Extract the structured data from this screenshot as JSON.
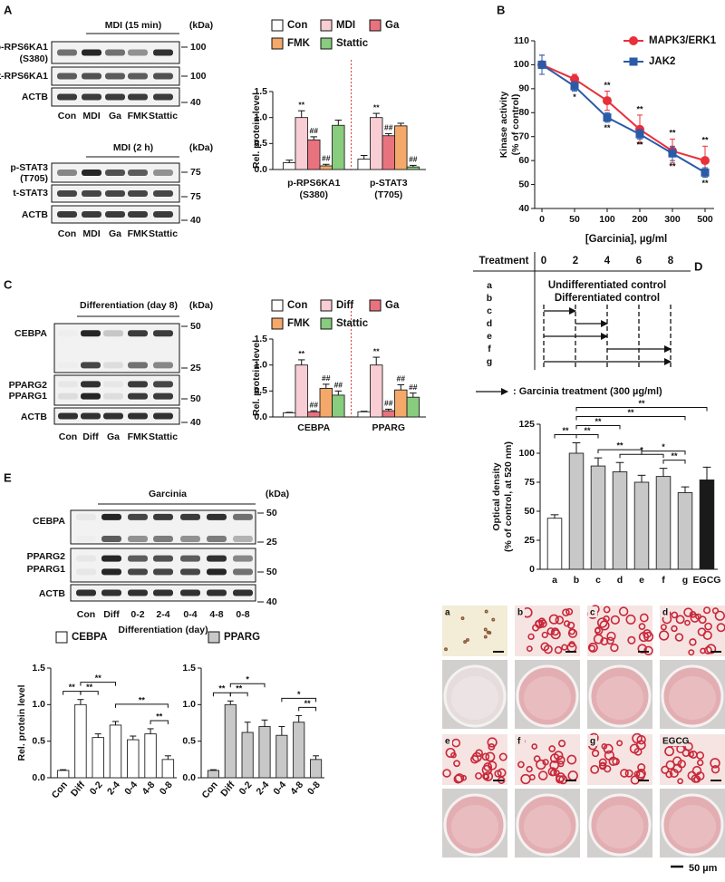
{
  "panels": [
    "A",
    "B",
    "C",
    "D",
    "E"
  ],
  "blots": [
    {
      "title": "MDI (15 min)",
      "kda": "(kDa)",
      "lanes": [
        "Con",
        "MDI",
        "Ga",
        "FMK",
        "Stattic"
      ],
      "rows": [
        {
          "labels": [
            "p-RPS6KA1",
            "(S380)"
          ],
          "markers": [
            100
          ]
        },
        {
          "labels": [
            "t-RPS6KA1"
          ],
          "markers": [
            100
          ]
        },
        {
          "labels": [
            "ACTB"
          ],
          "markers": [
            40
          ]
        }
      ]
    },
    {
      "title": "MDI (2 h)",
      "kda": "(kDa)",
      "lanes": [
        "Con",
        "MDI",
        "Ga",
        "FMK",
        "Stattic"
      ],
      "rows": [
        {
          "labels": [
            "p-STAT3",
            "(T705)"
          ],
          "markers": [
            75
          ]
        },
        {
          "labels": [
            "t-STAT3"
          ],
          "markers": [
            75
          ]
        },
        {
          "labels": [
            "ACTB"
          ],
          "markers": [
            40
          ]
        }
      ]
    },
    {
      "title": "Differentiation (day 8)",
      "kda": "(kDa)",
      "lanes": [
        "Con",
        "Diff",
        "Ga",
        "FMK",
        "Stattic"
      ],
      "rows": [
        {
          "labels": [
            "CEBPA"
          ],
          "markers": [
            50,
            25
          ]
        },
        {
          "labels": [
            "PPARG2",
            "PPARG1"
          ],
          "markers": [
            50
          ]
        },
        {
          "labels": [
            "ACTB"
          ],
          "markers": [
            40
          ]
        }
      ]
    },
    {
      "title": "Garcinia",
      "kda": "(kDa)",
      "lanes": [
        "Con",
        "Diff",
        "0-2",
        "2-4",
        "0-4",
        "4-8",
        "0-8"
      ],
      "xlabel": "Differentiation (day)",
      "rows": [
        {
          "labels": [
            "CEBPA"
          ],
          "markers": [
            50,
            25
          ]
        },
        {
          "labels": [
            "PPARG2",
            "PPARG1"
          ],
          "markers": [
            50
          ]
        },
        {
          "labels": [
            "ACTB"
          ],
          "markers": [
            40
          ]
        }
      ]
    }
  ],
  "chart_data": [
    {
      "type": "bar",
      "ylabel": [
        "Rel. protein level"
      ],
      "categories": [
        [
          "p-RPS6KA1",
          "(S380)"
        ],
        [
          "p-STAT3",
          "(T705)"
        ]
      ],
      "divider": true,
      "series": [
        {
          "name": "Con",
          "color": "#ffffff",
          "values": [
            0.13,
            0.2
          ],
          "errors": [
            0.05,
            0.07
          ],
          "marks": [
            null,
            null
          ]
        },
        {
          "name": "MDI",
          "color": "#f8cdd3",
          "values": [
            1.0,
            1.0
          ],
          "errors": [
            0.13,
            0.08
          ],
          "marks": [
            "**",
            "**"
          ]
        },
        {
          "name": "Ga",
          "color": "#e8737e",
          "values": [
            0.57,
            0.65
          ],
          "errors": [
            0.06,
            0.04
          ],
          "marks": [
            "##",
            "##"
          ]
        },
        {
          "name": "FMK",
          "color": "#f4a86a",
          "values": [
            0.07,
            0.84
          ],
          "errors": [
            0.03,
            0.05
          ],
          "marks": [
            "##",
            null
          ]
        },
        {
          "name": "Stattic",
          "color": "#88cc7e",
          "values": [
            0.85,
            0.05
          ],
          "errors": [
            0.1,
            0.03
          ],
          "marks": [
            null,
            "##"
          ]
        }
      ],
      "ylim": [
        0,
        1.5
      ],
      "yticks": [
        {
          "value": 0,
          "label": "0.0"
        },
        {
          "value": 0.5,
          "label": "0.5"
        },
        {
          "value": 1,
          "label": "1.0"
        },
        {
          "value": 1.5,
          "label": "1.5"
        }
      ]
    },
    {
      "type": "line",
      "ylabel": [
        "Kinase activity",
        "(% of control)"
      ],
      "xlabel": "[Garcinia], µg/ml",
      "categories": [
        "0",
        "50",
        "100",
        "200",
        "300",
        "500"
      ],
      "series": [
        {
          "name": "MAPK3/ERK1",
          "color": "#e8303a",
          "marker": "circle",
          "marks_side": "above",
          "values": [
            100,
            94,
            85,
            73,
            64,
            60
          ],
          "errors": [
            4,
            2,
            4,
            6,
            5,
            6
          ],
          "marks": [
            null,
            null,
            "**",
            "**",
            "**",
            "**"
          ]
        },
        {
          "name": "JAK2",
          "color": "#2a5aa8",
          "marker": "square",
          "marks_side": "below",
          "values": [
            100,
            91,
            78,
            71,
            63,
            55
          ],
          "errors": [
            4,
            2,
            2,
            2,
            3,
            2
          ],
          "marks": [
            null,
            "*",
            "**",
            "**",
            "**",
            "**"
          ]
        }
      ],
      "ylim": [
        40,
        110
      ],
      "yticks": [
        40,
        50,
        60,
        70,
        80,
        90,
        100,
        110
      ]
    },
    {
      "type": "bar",
      "ylabel": [
        "Rel. protein level"
      ],
      "categories": [
        "CEBPA",
        "PPARG"
      ],
      "divider": true,
      "series": [
        {
          "name": "Con",
          "color": "#ffffff",
          "values": [
            0.08,
            0.1
          ],
          "errors": [
            0.01,
            0.01
          ],
          "marks": [
            null,
            null
          ]
        },
        {
          "name": "Diff",
          "color": "#f8cdd3",
          "values": [
            1.0,
            1.0
          ],
          "errors": [
            0.1,
            0.15
          ],
          "marks": [
            "**",
            "**"
          ]
        },
        {
          "name": "Ga",
          "color": "#e8737e",
          "values": [
            0.1,
            0.12
          ],
          "errors": [
            0.02,
            0.03
          ],
          "marks": [
            "##",
            "##"
          ]
        },
        {
          "name": "FMK",
          "color": "#f4a86a",
          "values": [
            0.55,
            0.52
          ],
          "errors": [
            0.08,
            0.1
          ],
          "marks": [
            "##",
            "##"
          ]
        },
        {
          "name": "Stattic",
          "color": "#88cc7e",
          "values": [
            0.42,
            0.38
          ],
          "errors": [
            0.08,
            0.08
          ],
          "marks": [
            "##",
            "##"
          ]
        }
      ],
      "ylim": [
        0,
        1.5
      ],
      "yticks": [
        {
          "value": 0,
          "label": "0.0"
        },
        {
          "value": 0.5,
          "label": "0.5"
        },
        {
          "value": 1,
          "label": "1.0"
        },
        {
          "value": 1.5,
          "label": "1.5"
        }
      ]
    },
    {
      "type": "bar",
      "ylabel": [
        "Optical density",
        "(% of control, at 520 nm)"
      ],
      "categories": [
        "a",
        "b",
        "c",
        "d",
        "e",
        "f",
        "g",
        "EGCG"
      ],
      "values": [
        44,
        100,
        89,
        84,
        75,
        80,
        66,
        77
      ],
      "errors": [
        3,
        9,
        7,
        8,
        6,
        7,
        5,
        11
      ],
      "colors": [
        "#ffffff",
        "#c8c8c8",
        "#c8c8c8",
        "#c8c8c8",
        "#c8c8c8",
        "#c8c8c8",
        "#c8c8c8",
        "#1a1a1a"
      ],
      "brackets": [
        {
          "from": 0,
          "to": 1,
          "label": "**"
        },
        {
          "from": 1,
          "to": 2,
          "label": "**"
        },
        {
          "from": 1,
          "to": 3,
          "label": "**"
        },
        {
          "from": 2,
          "to": 4,
          "label": "**"
        },
        {
          "from": 3,
          "to": 5,
          "label": "*"
        },
        {
          "from": 4,
          "to": 6,
          "label": "*"
        },
        {
          "from": 5,
          "to": 6,
          "label": "**"
        },
        {
          "from": 1,
          "to": 6,
          "label": "**"
        },
        {
          "from": 1,
          "to": 7,
          "label": "**"
        }
      ],
      "ylim": [
        0,
        125
      ],
      "yticks": [
        0,
        25,
        50,
        75,
        100,
        125
      ]
    },
    {
      "type": "bar",
      "ylabel": [
        "Rel. protein level"
      ],
      "categories": [
        "Con",
        "Diff",
        "0-2",
        "2-4",
        "0-4",
        "4-8",
        "0-8"
      ],
      "series": [
        {
          "name": "CEBPA",
          "color": "#ffffff",
          "values": [
            0.1,
            1.0,
            0.55,
            0.72,
            0.52,
            0.6,
            0.25
          ],
          "errors": [
            0.01,
            0.07,
            0.05,
            0.05,
            0.05,
            0.07,
            0.05
          ]
        }
      ],
      "brackets": [
        {
          "from": 0,
          "to": 1,
          "label": "**"
        },
        {
          "from": 1,
          "to": 2,
          "label": "**"
        },
        {
          "from": 1,
          "to": 3,
          "label": "**"
        },
        {
          "from": 3,
          "to": 6,
          "label": "**"
        },
        {
          "from": 5,
          "to": 6,
          "label": "**"
        }
      ],
      "ylim": [
        0,
        1.5
      ],
      "yticks": [
        {
          "value": 0,
          "label": "0.0"
        },
        {
          "value": 0.5,
          "label": "0.5"
        },
        {
          "value": 1,
          "label": "1.0"
        },
        {
          "value": 1.5,
          "label": "1.5"
        }
      ]
    },
    {
      "type": "bar",
      "categories": [
        "Con",
        "Diff",
        "0-2",
        "2-4",
        "0-4",
        "4-8",
        "0-8"
      ],
      "series": [
        {
          "name": "PPARG",
          "color": "#c8c8c8",
          "values": [
            0.1,
            1.0,
            0.62,
            0.7,
            0.58,
            0.76,
            0.25
          ],
          "errors": [
            0.01,
            0.05,
            0.14,
            0.09,
            0.12,
            0.09,
            0.05
          ]
        }
      ],
      "brackets": [
        {
          "from": 0,
          "to": 1,
          "label": "**"
        },
        {
          "from": 1,
          "to": 2,
          "label": "**"
        },
        {
          "from": 1,
          "to": 3,
          "label": "*"
        },
        {
          "from": 4,
          "to": 6,
          "label": "*"
        },
        {
          "from": 5,
          "to": 6,
          "label": "**"
        }
      ],
      "ylim": [
        0,
        1.5
      ],
      "yticks": [
        {
          "value": 0,
          "label": "0.0"
        },
        {
          "value": 0.5,
          "label": "0.5"
        },
        {
          "value": 1,
          "label": "1.0"
        },
        {
          "value": 1.5,
          "label": "1.5"
        }
      ]
    }
  ],
  "schema": {
    "header": "Treatment",
    "times": [
      0,
      2,
      4,
      6,
      8
    ],
    "rows": [
      "a",
      "b",
      "c",
      "d",
      "e",
      "f",
      "g"
    ],
    "spans": [
      {
        "row": 0,
        "label": "Undifferentiated control"
      },
      {
        "row": 1,
        "label": "Differentiated control"
      }
    ],
    "arrows": [
      {
        "row": 2,
        "from": 0,
        "to": 2
      },
      {
        "row": 3,
        "from": 2,
        "to": 4
      },
      {
        "row": 4,
        "from": 0,
        "to": 4
      },
      {
        "row": 5,
        "from": 4,
        "to": 8
      },
      {
        "row": 6,
        "from": 0,
        "to": 8
      }
    ],
    "legend": ": Garcinia treatment (300 µg/ml)"
  },
  "staining": {
    "labels": [
      "a",
      "b",
      "c",
      "d",
      "e",
      "f",
      "g",
      "EGCG"
    ],
    "scale_bar": "50 µm"
  }
}
